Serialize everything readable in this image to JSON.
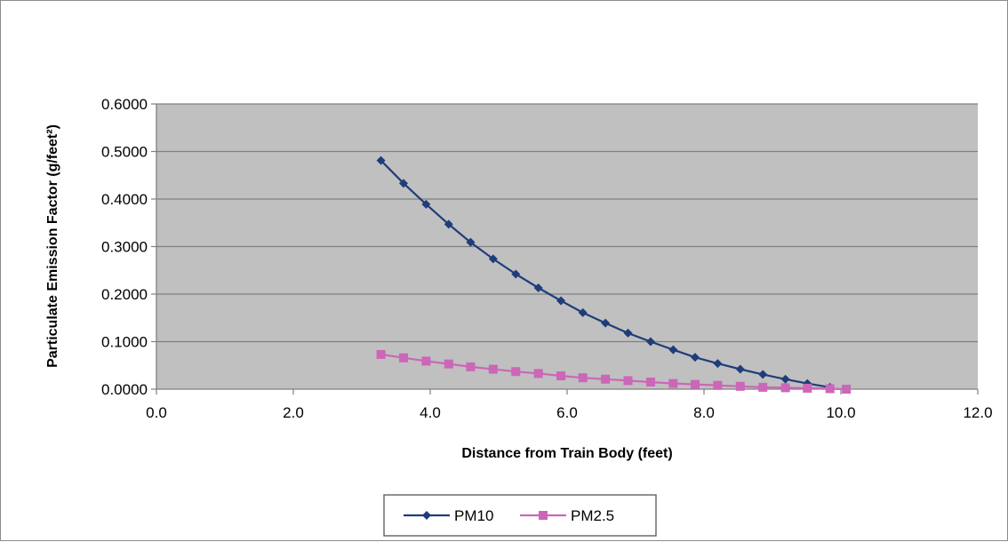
{
  "chart_data": {
    "type": "line",
    "title": "",
    "xlabel": "Distance from Train Body (feet)",
    "ylabel": "Particulate Emission Factor (g/feet²)",
    "xlim": [
      0,
      12
    ],
    "ylim": [
      0,
      0.6
    ],
    "x_ticks": [
      "0.0",
      "2.0",
      "4.0",
      "6.0",
      "8.0",
      "10.0",
      "12.0"
    ],
    "y_ticks": [
      "0.0000",
      "0.1000",
      "0.2000",
      "0.3000",
      "0.4000",
      "0.5000",
      "0.6000"
    ],
    "grid": true,
    "plot_background": "#c0c0c0",
    "legend_position": "bottom",
    "series": [
      {
        "name": "PM10",
        "color": "#1f3d7a",
        "marker": "diamond",
        "x": [
          3.28,
          3.61,
          3.94,
          4.27,
          4.59,
          4.92,
          5.25,
          5.58,
          5.91,
          6.23,
          6.56,
          6.89,
          7.22,
          7.55,
          7.87,
          8.2,
          8.53,
          8.86,
          9.19,
          9.51,
          9.84
        ],
        "y": [
          0.481,
          0.433,
          0.389,
          0.347,
          0.309,
          0.274,
          0.242,
          0.213,
          0.186,
          0.161,
          0.139,
          0.118,
          0.1,
          0.083,
          0.067,
          0.054,
          0.042,
          0.031,
          0.021,
          0.012,
          0.004
        ]
      },
      {
        "name": "PM2.5",
        "color": "#cc66b8",
        "marker": "square",
        "x": [
          3.28,
          3.61,
          3.94,
          4.27,
          4.59,
          4.92,
          5.25,
          5.58,
          5.91,
          6.23,
          6.56,
          6.89,
          7.22,
          7.55,
          7.87,
          8.2,
          8.53,
          8.86,
          9.19,
          9.51,
          9.84,
          10.08
        ],
        "y": [
          0.073,
          0.066,
          0.059,
          0.053,
          0.047,
          0.042,
          0.037,
          0.033,
          0.028,
          0.024,
          0.021,
          0.018,
          0.015,
          0.012,
          0.01,
          0.008,
          0.006,
          0.004,
          0.003,
          0.002,
          0.001,
          0.0
        ]
      }
    ]
  }
}
